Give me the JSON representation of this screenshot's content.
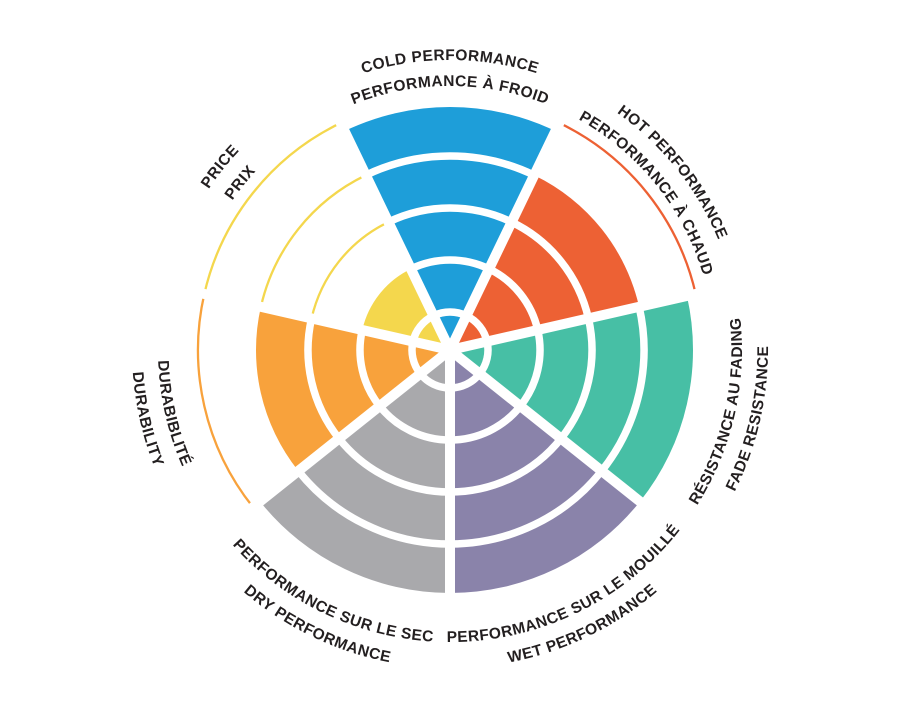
{
  "chart_data": {
    "type": "polar-wheel",
    "title": "",
    "description": "Seven-segment circular performance rating wheel; each segment is rated by filled concentric rings from the center (0-5). Unfilled ring boundaries are drawn as thin arcs in the segment color.",
    "scale": {
      "rings": 5,
      "min": 0,
      "max": 5
    },
    "layout": {
      "start_angle_deg": 90,
      "direction": "clockwise",
      "grid": "white ring separators inside fills; thin colored arcs for unfilled rings",
      "legend_position": "labels arranged tangentially around wheel, English outer line, French inner line",
      "background": "#FFFFFF",
      "text_color": "#231F20",
      "divider_color": "#FFFFFF"
    },
    "segments": [
      {
        "id": "cold-performance",
        "label_en": "COLD PERFORMANCE",
        "label_fr": "PERFORMANCE À FROID",
        "value": 5,
        "color": "#1E9ED9"
      },
      {
        "id": "hot-performance",
        "label_en": "HOT PERFORMANCE",
        "label_fr": "PERFORMANCE À CHAUD",
        "value": 4,
        "color": "#ED6134"
      },
      {
        "id": "fade-resistance",
        "label_en": "FADE RESISTANCE",
        "label_fr": "RÉSISTANCE AU FADING",
        "value": 5,
        "color": "#47BFA5"
      },
      {
        "id": "wet-performance",
        "label_en": "WET PERFORMANCE",
        "label_fr": "PERFORMANCE SUR LE MOUILLÉ",
        "value": 5,
        "color": "#8A83AA"
      },
      {
        "id": "dry-performance",
        "label_en": "DRY PERFORMANCE",
        "label_fr": "PERFORMANCE SUR LE SEC",
        "value": 5,
        "color": "#A9A9AC"
      },
      {
        "id": "durability",
        "label_en": "DURABILITY",
        "label_fr": "DURABIBLITÉ",
        "value": 4,
        "color": "#F8A23C"
      },
      {
        "id": "price",
        "label_en": "PRICE",
        "label_fr": "PRIX",
        "value": 2,
        "color": "#F4D74D"
      }
    ]
  }
}
